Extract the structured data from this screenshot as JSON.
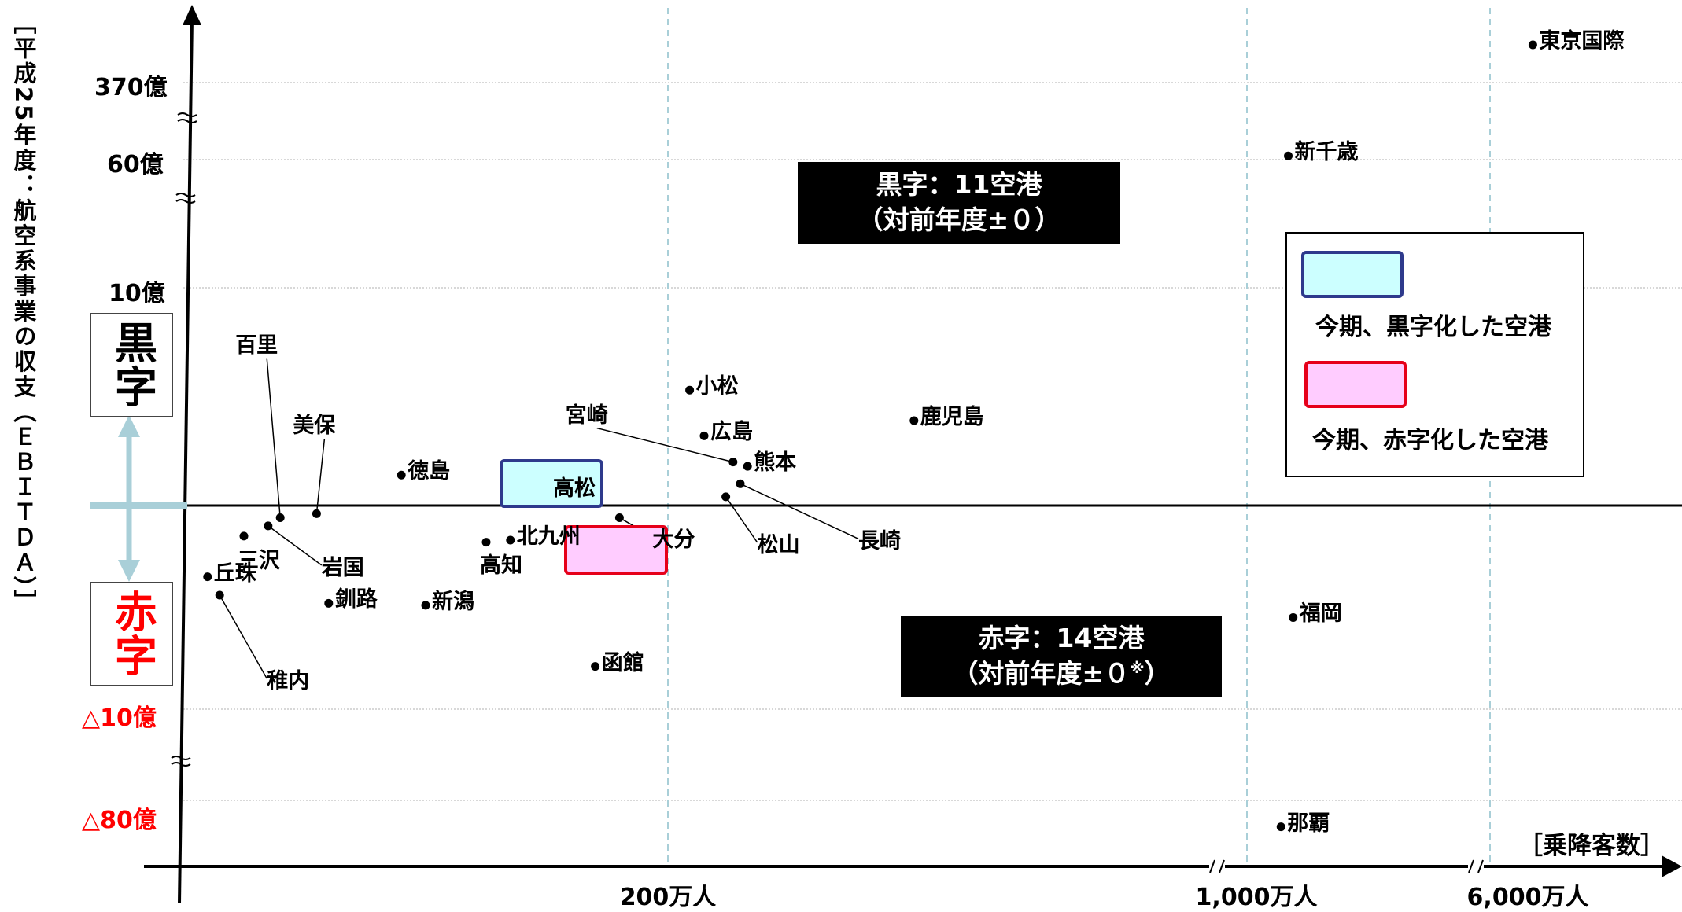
{
  "chart_data": {
    "type": "scatter",
    "ylabel": "［平成25年度：航空系事業の収支（ＥＢＩＴＤＡ）］",
    "xlabel": "［乗降客数］",
    "x_ticks": [
      "200万人",
      "1,000万人",
      "6,000万人"
    ],
    "y_ticks": {
      "positive": [
        "370億",
        "60億",
        "10億"
      ],
      "negative": [
        "△10億",
        "△80億"
      ]
    },
    "x_scale": "broken (axis breaks between 200万人 and 1,000万人, and between 1,000万人 and 6,000万人)",
    "y_scale": "broken (axis breaks between 370億/60億, 60億/10億, and below △10億)",
    "points": [
      {
        "name": "東京国際",
        "x": 6800,
        "y": 430
      },
      {
        "name": "新千歳",
        "x": 1850,
        "y": 75
      },
      {
        "name": "那覇",
        "x": 1700,
        "y": -120
      },
      {
        "name": "福岡",
        "x": 1950,
        "y": -5.5
      },
      {
        "name": "鹿児島",
        "x": 540,
        "y": 3.9
      },
      {
        "name": "小松",
        "x": 230,
        "y": 5.3
      },
      {
        "name": "広島",
        "x": 250,
        "y": 3.2
      },
      {
        "name": "熊本",
        "x": 310,
        "y": 1.8
      },
      {
        "name": "宮崎",
        "x": 290,
        "y": 2.0
      },
      {
        "name": "長崎",
        "x": 300,
        "y": 1.0
      },
      {
        "name": "松山",
        "x": 280,
        "y": 0.4
      },
      {
        "name": "高松",
        "x": 150,
        "y": 0.6
      },
      {
        "name": "大分",
        "x": 180,
        "y": -0.6
      },
      {
        "name": "徳島",
        "x": 90,
        "y": 1.4
      },
      {
        "name": "北九州",
        "x": 135,
        "y": -1.7
      },
      {
        "name": "高知",
        "x": 125,
        "y": -1.8
      },
      {
        "name": "美保",
        "x": 55,
        "y": -0.4
      },
      {
        "name": "百里",
        "x": 40,
        "y": -0.6
      },
      {
        "name": "岩国",
        "x": 35,
        "y": -1.0
      },
      {
        "name": "三沢",
        "x": 25,
        "y": -1.5
      },
      {
        "name": "丘珠",
        "x": 10,
        "y": -3.5
      },
      {
        "name": "稚内",
        "x": 15,
        "y": -4.4
      },
      {
        "name": "釧路",
        "x": 60,
        "y": -4.8
      },
      {
        "name": "新潟",
        "x": 100,
        "y": -4.9
      },
      {
        "name": "函館",
        "x": 170,
        "y": -7.9
      }
    ],
    "highlight": {
      "高松": "今期、黒字化した空港",
      "大分": "今期、赤字化した空港"
    },
    "grid": true
  },
  "side_labels": {
    "profit": "黒字",
    "loss": "赤字"
  },
  "callouts": {
    "profit_title": "黒字：11空港",
    "profit_sub": "（対前年度±０）",
    "loss_title": "赤字：14空港",
    "loss_sub": "（対前年度±０",
    "loss_note": "※",
    "loss_close": "）"
  },
  "legend": {
    "items": [
      {
        "label": "今期、黒字化した空港",
        "fill": "#ccffff",
        "border": "#2e3a8c"
      },
      {
        "label": "今期、赤字化した空港",
        "fill": "#ffccff",
        "border": "#e6001a"
      }
    ]
  },
  "colors": {
    "negative_text": "#ff0000",
    "vgrid": "#a9cfd8",
    "hgrid": "#b0b0b0",
    "arrow": "#a9cfd8"
  }
}
